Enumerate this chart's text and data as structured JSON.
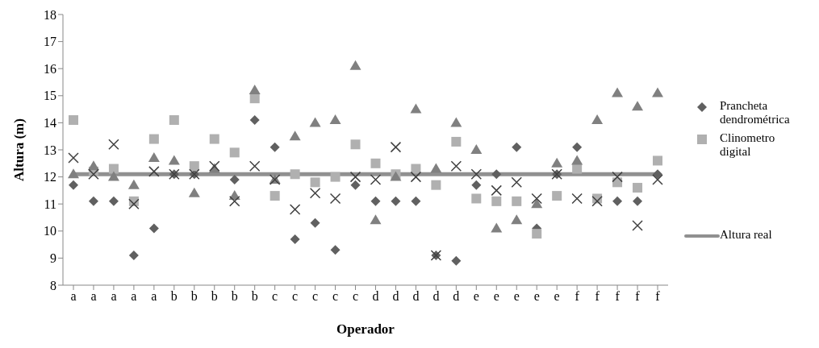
{
  "chart_data": {
    "type": "scatter",
    "xlabel": "Operador",
    "ylabel": "Altura (m)",
    "categories": [
      "a",
      "a",
      "a",
      "a",
      "a",
      "b",
      "b",
      "b",
      "b",
      "b",
      "c",
      "c",
      "c",
      "c",
      "c",
      "d",
      "d",
      "d",
      "d",
      "d",
      "e",
      "e",
      "e",
      "e",
      "e",
      "f",
      "f",
      "f",
      "f",
      "f"
    ],
    "series": [
      {
        "name": "Prancheta dendrométrica",
        "color": "#606060",
        "marker": "diamond",
        "values": [
          11.7,
          11.1,
          11.1,
          9.1,
          10.1,
          12.1,
          12.1,
          null,
          11.9,
          14.1,
          13.1,
          9.7,
          10.3,
          9.3,
          11.7,
          11.1,
          11.1,
          11.1,
          9.1,
          8.9,
          11.7,
          12.1,
          13.1,
          10.1,
          12.1,
          13.1,
          null,
          11.1,
          11.1,
          12.1
        ]
      },
      {
        "name": "Clinometro digital",
        "color": "#b0b0b0",
        "marker": "square",
        "values": [
          14.1,
          12.2,
          12.3,
          11.1,
          13.4,
          14.1,
          12.4,
          13.4,
          12.9,
          14.9,
          11.3,
          12.1,
          11.8,
          12.0,
          13.2,
          12.5,
          12.1,
          12.3,
          11.7,
          13.3,
          11.2,
          11.1,
          11.1,
          9.9,
          11.3,
          12.3,
          11.2,
          11.8,
          11.6,
          12.6
        ]
      },
      {
        "color": "#808080",
        "marker": "triangle",
        "values": [
          12.1,
          12.4,
          12.0,
          11.7,
          12.7,
          12.6,
          11.4,
          12.3,
          11.3,
          15.2,
          11.9,
          13.5,
          14.0,
          14.1,
          16.1,
          10.4,
          12.0,
          14.5,
          12.3,
          14.0,
          13.0,
          10.1,
          10.4,
          11.0,
          12.5,
          12.6,
          14.1,
          15.1,
          14.6,
          15.1
        ]
      },
      {
        "color": "#404040",
        "marker": "cross",
        "values": [
          12.7,
          12.1,
          13.2,
          11.0,
          12.2,
          12.1,
          12.1,
          12.4,
          11.1,
          12.4,
          11.9,
          10.8,
          11.4,
          11.2,
          12.0,
          11.9,
          13.1,
          12.0,
          9.1,
          12.4,
          12.1,
          11.5,
          11.8,
          11.2,
          12.1,
          11.2,
          11.1,
          12.0,
          10.2,
          11.9
        ]
      },
      {
        "name": "Altura real",
        "type": "line",
        "color": "#909090",
        "values": [
          12.1,
          12.1,
          12.1,
          12.1,
          12.1,
          12.1,
          12.1,
          12.1,
          12.1,
          12.1,
          12.1,
          12.1,
          12.1,
          12.1,
          12.1,
          12.1,
          12.1,
          12.1,
          12.1,
          12.1,
          12.1,
          12.1,
          12.1,
          12.1,
          12.1,
          12.1,
          12.1,
          12.1,
          12.1,
          12.1
        ]
      }
    ],
    "ylim": [
      8,
      18
    ],
    "yticks": [
      8,
      9,
      10,
      11,
      12,
      13,
      14,
      15,
      16,
      17,
      18
    ],
    "grid": false,
    "legend": "right"
  }
}
